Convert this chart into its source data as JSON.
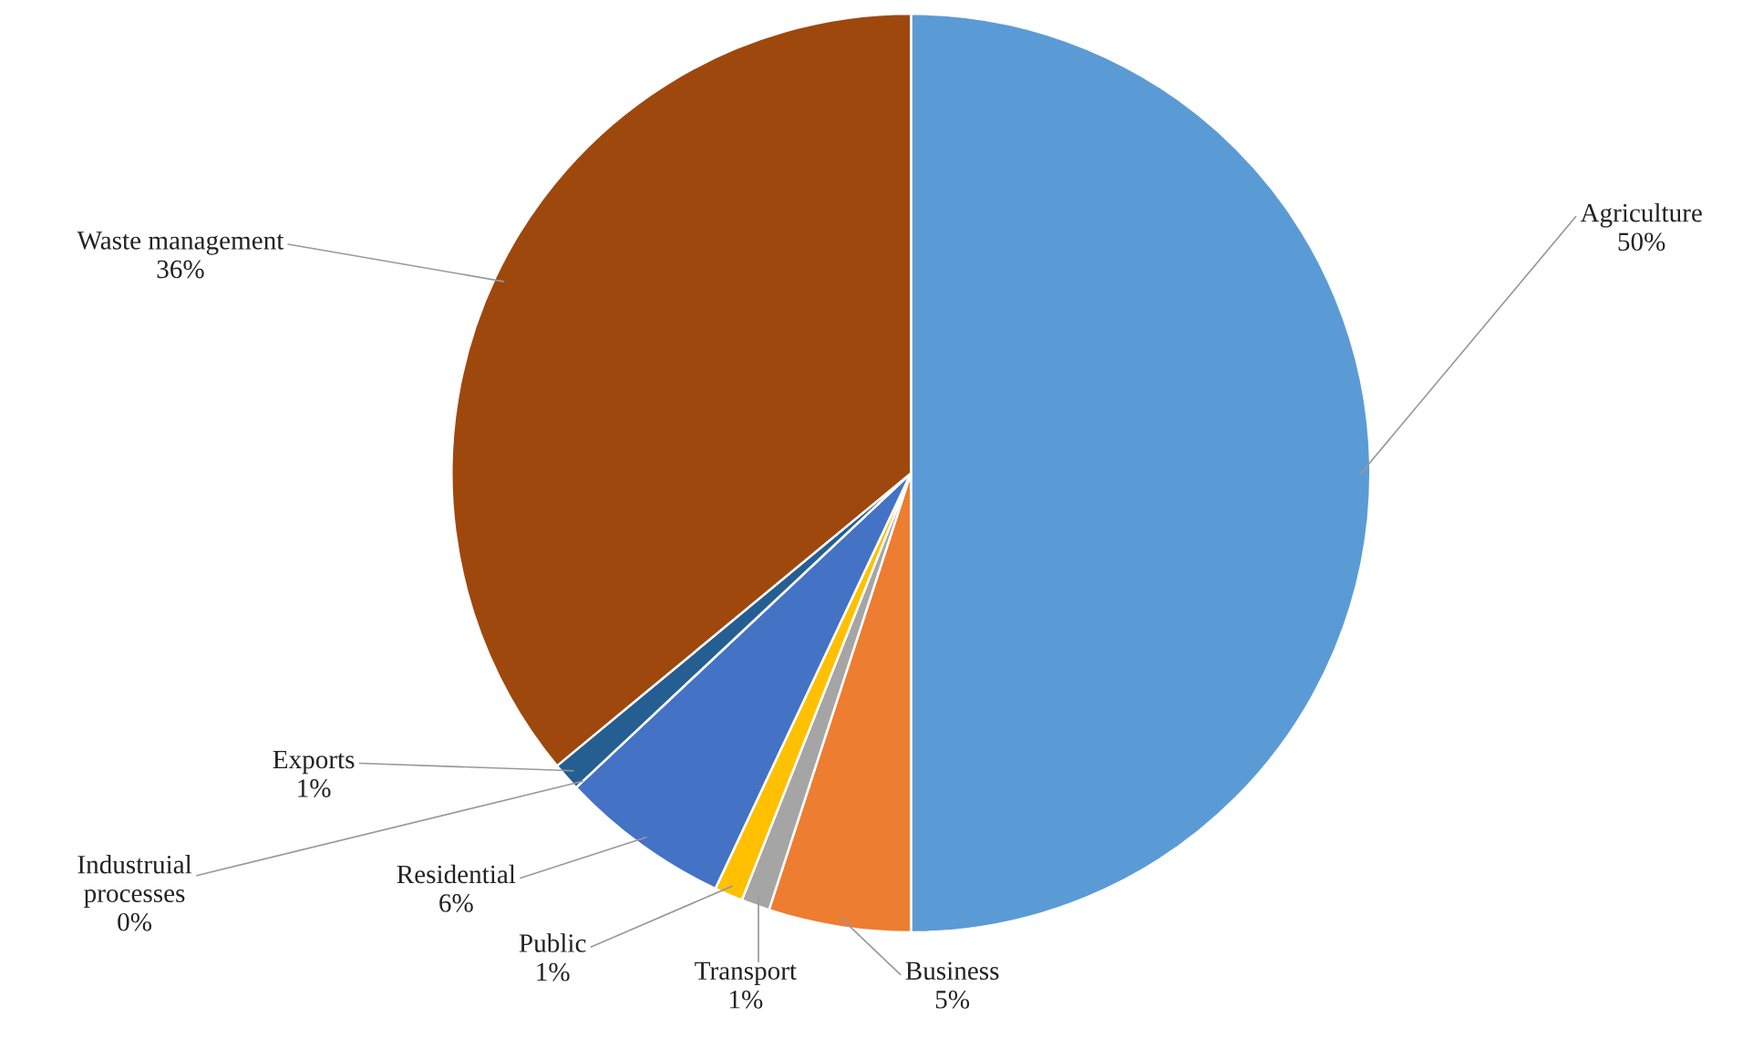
{
  "chart_data": {
    "type": "pie",
    "categories": [
      "Agriculture",
      "Business",
      "Transport",
      "Public",
      "Residential",
      "Industruial\nprocesses",
      "Exports",
      "Waste management"
    ],
    "values": [
      50,
      5,
      1,
      1,
      6,
      0,
      1,
      36
    ],
    "value_labels": [
      "50%",
      "5%",
      "1%",
      "1%",
      "6%",
      "0%",
      "1%",
      "36%"
    ],
    "colors": [
      "#5b9bd5",
      "#ed7d31",
      "#a5a5a5",
      "#ffc000",
      "#4472c4",
      "#70ad47",
      "#255e91",
      "#9e480e"
    ],
    "legend": false
  }
}
